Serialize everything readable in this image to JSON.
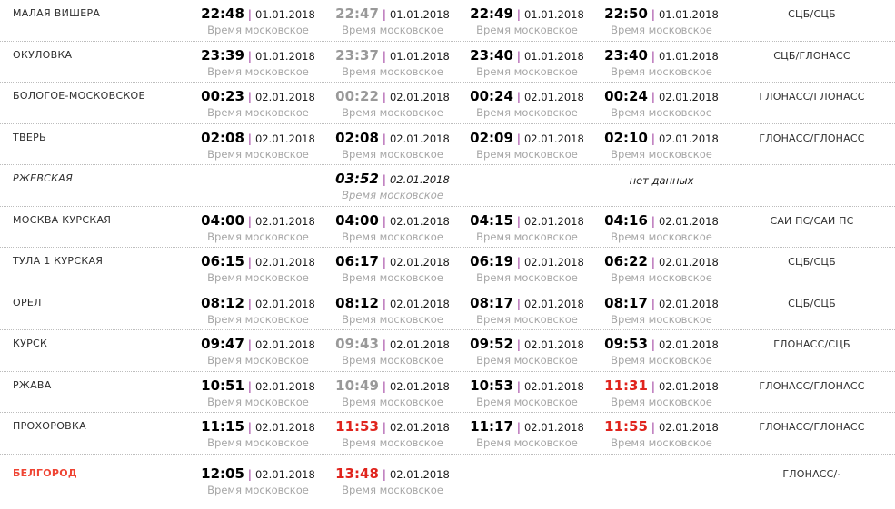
{
  "labels": {
    "moscow_time": "Время московское",
    "no_data": "нет данных",
    "dash": "—",
    "pipe": "|"
  },
  "colors": {
    "pipe_separator": "#993399",
    "time_default": "#000000",
    "time_gray": "#999999",
    "time_red": "#e0241d",
    "station_red": "#ef4433",
    "secondary_text": "#a6a6a6",
    "row_divider": "#bdbdbd"
  },
  "timetable": {
    "rows": [
      {
        "station": "МАЛАЯ ВИШЕРА",
        "cells": [
          {
            "type": "time",
            "time": "22:48",
            "date": "01.01.2018",
            "color": "black"
          },
          {
            "type": "time",
            "time": "22:47",
            "date": "01.01.2018",
            "color": "gray"
          },
          {
            "type": "time",
            "time": "22:49",
            "date": "01.01.2018",
            "color": "black"
          },
          {
            "type": "time",
            "time": "22:50",
            "date": "01.01.2018",
            "color": "black"
          }
        ],
        "status": "СЦБ/СЦБ"
      },
      {
        "station": "ОКУЛОВКА",
        "cells": [
          {
            "type": "time",
            "time": "23:39",
            "date": "01.01.2018",
            "color": "black"
          },
          {
            "type": "time",
            "time": "23:37",
            "date": "01.01.2018",
            "color": "gray"
          },
          {
            "type": "time",
            "time": "23:40",
            "date": "01.01.2018",
            "color": "black"
          },
          {
            "type": "time",
            "time": "23:40",
            "date": "01.01.2018",
            "color": "black"
          }
        ],
        "status": "СЦБ/ГЛОНАСС"
      },
      {
        "station": "БОЛОГОЕ-МОСКОВСКОЕ",
        "cells": [
          {
            "type": "time",
            "time": "00:23",
            "date": "02.01.2018",
            "color": "black"
          },
          {
            "type": "time",
            "time": "00:22",
            "date": "02.01.2018",
            "color": "gray"
          },
          {
            "type": "time",
            "time": "00:24",
            "date": "02.01.2018",
            "color": "black"
          },
          {
            "type": "time",
            "time": "00:24",
            "date": "02.01.2018",
            "color": "black"
          }
        ],
        "status": "ГЛОНАСС/ГЛОНАСС"
      },
      {
        "station": "ТВЕРЬ",
        "cells": [
          {
            "type": "time",
            "time": "02:08",
            "date": "02.01.2018",
            "color": "black"
          },
          {
            "type": "time",
            "time": "02:08",
            "date": "02.01.2018",
            "color": "black"
          },
          {
            "type": "time",
            "time": "02:09",
            "date": "02.01.2018",
            "color": "black"
          },
          {
            "type": "time",
            "time": "02:10",
            "date": "02.01.2018",
            "color": "black"
          }
        ],
        "status": "ГЛОНАСС/ГЛОНАСС"
      },
      {
        "station": "РЖЕВСКАЯ",
        "italic": true,
        "cells": [
          {
            "type": "empty"
          },
          {
            "type": "time",
            "time": "03:52",
            "date": "02.01.2018",
            "color": "black"
          },
          {
            "type": "empty"
          },
          {
            "type": "no_data"
          }
        ],
        "status": ""
      },
      {
        "station": "МОСКВА КУРСКАЯ",
        "cells": [
          {
            "type": "time",
            "time": "04:00",
            "date": "02.01.2018",
            "color": "black"
          },
          {
            "type": "time",
            "time": "04:00",
            "date": "02.01.2018",
            "color": "black"
          },
          {
            "type": "time",
            "time": "04:15",
            "date": "02.01.2018",
            "color": "black"
          },
          {
            "type": "time",
            "time": "04:16",
            "date": "02.01.2018",
            "color": "black"
          }
        ],
        "status": "САИ ПС/САИ ПС"
      },
      {
        "station": "ТУЛА 1 КУРСКАЯ",
        "cells": [
          {
            "type": "time",
            "time": "06:15",
            "date": "02.01.2018",
            "color": "black"
          },
          {
            "type": "time",
            "time": "06:17",
            "date": "02.01.2018",
            "color": "black"
          },
          {
            "type": "time",
            "time": "06:19",
            "date": "02.01.2018",
            "color": "black"
          },
          {
            "type": "time",
            "time": "06:22",
            "date": "02.01.2018",
            "color": "black"
          }
        ],
        "status": "СЦБ/СЦБ"
      },
      {
        "station": "ОРЕЛ",
        "cells": [
          {
            "type": "time",
            "time": "08:12",
            "date": "02.01.2018",
            "color": "black"
          },
          {
            "type": "time",
            "time": "08:12",
            "date": "02.01.2018",
            "color": "black"
          },
          {
            "type": "time",
            "time": "08:17",
            "date": "02.01.2018",
            "color": "black"
          },
          {
            "type": "time",
            "time": "08:17",
            "date": "02.01.2018",
            "color": "black"
          }
        ],
        "status": "СЦБ/СЦБ"
      },
      {
        "station": "КУРСК",
        "cells": [
          {
            "type": "time",
            "time": "09:47",
            "date": "02.01.2018",
            "color": "black"
          },
          {
            "type": "time",
            "time": "09:43",
            "date": "02.01.2018",
            "color": "gray"
          },
          {
            "type": "time",
            "time": "09:52",
            "date": "02.01.2018",
            "color": "black"
          },
          {
            "type": "time",
            "time": "09:53",
            "date": "02.01.2018",
            "color": "black"
          }
        ],
        "status": "ГЛОНАСС/СЦБ"
      },
      {
        "station": "РЖАВА",
        "cells": [
          {
            "type": "time",
            "time": "10:51",
            "date": "02.01.2018",
            "color": "black"
          },
          {
            "type": "time",
            "time": "10:49",
            "date": "02.01.2018",
            "color": "gray"
          },
          {
            "type": "time",
            "time": "10:53",
            "date": "02.01.2018",
            "color": "black"
          },
          {
            "type": "time",
            "time": "11:31",
            "date": "02.01.2018",
            "color": "red"
          }
        ],
        "status": "ГЛОНАСС/ГЛОНАСС"
      },
      {
        "station": "ПРОХОРОВКА",
        "cells": [
          {
            "type": "time",
            "time": "11:15",
            "date": "02.01.2018",
            "color": "black"
          },
          {
            "type": "time",
            "time": "11:53",
            "date": "02.01.2018",
            "color": "red"
          },
          {
            "type": "time",
            "time": "11:17",
            "date": "02.01.2018",
            "color": "black"
          },
          {
            "type": "time",
            "time": "11:55",
            "date": "02.01.2018",
            "color": "red"
          }
        ],
        "status": "ГЛОНАСС/ГЛОНАСС"
      },
      {
        "station": "БЕЛГОРОД",
        "station_color": "red",
        "cells": [
          {
            "type": "time",
            "time": "12:05",
            "date": "02.01.2018",
            "color": "black"
          },
          {
            "type": "time",
            "time": "13:48",
            "date": "02.01.2018",
            "color": "red"
          },
          {
            "type": "dash"
          },
          {
            "type": "dash"
          }
        ],
        "status": "ГЛОНАСС/-"
      }
    ]
  }
}
